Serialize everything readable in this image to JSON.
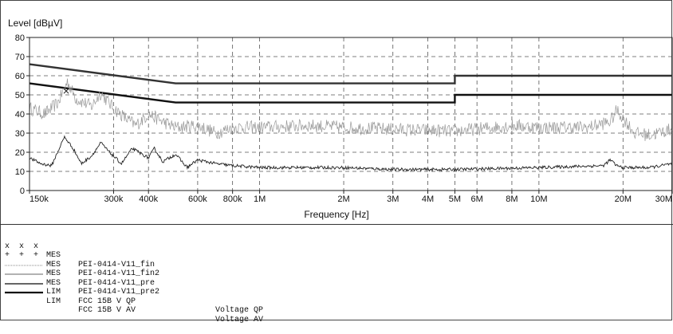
{
  "chart_data": {
    "type": "line",
    "ylabel": "Level [dBµV]",
    "xlabel": "Frequency [Hz]",
    "xscale": "log",
    "xlim": [
      150000,
      30000000
    ],
    "ylim": [
      0,
      80
    ],
    "yticks": [
      0,
      10,
      20,
      30,
      40,
      50,
      60,
      70,
      80
    ],
    "xticks": [
      {
        "value": 150000,
        "label": "150k"
      },
      {
        "value": 300000,
        "label": "300k"
      },
      {
        "value": 400000,
        "label": "400k"
      },
      {
        "value": 600000,
        "label": "600k"
      },
      {
        "value": 800000,
        "label": "800k"
      },
      {
        "value": 1000000,
        "label": "1M"
      },
      {
        "value": 2000000,
        "label": "2M"
      },
      {
        "value": 3000000,
        "label": "3M"
      },
      {
        "value": 4000000,
        "label": "4M"
      },
      {
        "value": 5000000,
        "label": "5M"
      },
      {
        "value": 6000000,
        "label": "6M"
      },
      {
        "value": 8000000,
        "label": "8M"
      },
      {
        "value": 10000000,
        "label": "10M"
      },
      {
        "value": 20000000,
        "label": "20M"
      },
      {
        "value": 30000000,
        "label": "30M"
      }
    ],
    "grid": true,
    "series": [
      {
        "name": "FCC 15B V QP",
        "kind": "limit",
        "color": "#333333",
        "x": [
          150000,
          500000,
          5000000,
          5000000,
          30000000
        ],
        "y": [
          66,
          56,
          56,
          60,
          60
        ]
      },
      {
        "name": "FCC 15B V AV",
        "kind": "limit",
        "color": "#111111",
        "x": [
          150000,
          500000,
          5000000,
          5000000,
          30000000
        ],
        "y": [
          56,
          46,
          46,
          50,
          50
        ]
      },
      {
        "name": "PEI-0414-V11_pre",
        "kind": "scan",
        "color": "#999999",
        "x": [
          150000,
          170000,
          190000,
          205000,
          220000,
          250000,
          270000,
          300000,
          330000,
          360000,
          400000,
          450000,
          500000,
          600000,
          700000,
          800000,
          1000000,
          1500000,
          2000000,
          3000000,
          5000000,
          8000000,
          10000000,
          15000000,
          18000000,
          19000000,
          20000000,
          22000000,
          25000000,
          30000000
        ],
        "y": [
          43,
          40,
          46,
          57,
          48,
          44,
          51,
          43,
          38,
          34,
          40,
          36,
          33,
          34,
          30,
          33,
          33,
          34,
          33,
          32,
          31,
          34,
          33,
          33,
          36,
          42,
          38,
          30,
          29,
          32
        ]
      },
      {
        "name": "PEI-0414-V11_pre2",
        "kind": "scan",
        "color": "#222222",
        "x": [
          150000,
          165000,
          180000,
          200000,
          215000,
          230000,
          250000,
          270000,
          290000,
          320000,
          350000,
          400000,
          420000,
          450000,
          500000,
          550000,
          600000,
          700000,
          800000,
          1000000,
          2000000,
          3000000,
          5000000,
          10000000,
          17000000,
          18000000,
          19000000,
          20000000,
          25000000,
          30000000
        ],
        "y": [
          17,
          14,
          13,
          28,
          22,
          14,
          18,
          25,
          20,
          14,
          22,
          17,
          22,
          15,
          19,
          12,
          16,
          14,
          13,
          12,
          12,
          11,
          11,
          12,
          13,
          16,
          13,
          12,
          12,
          14
        ]
      },
      {
        "name": "PEI-0414-V11_fin",
        "kind": "points",
        "marker": "x",
        "x": [
          203000
        ],
        "y": [
          52
        ]
      }
    ]
  },
  "legend": [
    {
      "symbol": "x  x  x",
      "type": "MES",
      "name": "PEI-0414-V11_fin",
      "desc": ""
    },
    {
      "symbol": "+  +  +",
      "type": "MES",
      "name": "PEI-0414-V11_fin2",
      "desc": ""
    },
    {
      "symbol": "dotted",
      "type": "MES",
      "name": "PEI-0414-V11_pre",
      "desc": ""
    },
    {
      "symbol": "thin",
      "type": "MES",
      "name": "PEI-0414-V11_pre2",
      "desc": ""
    },
    {
      "symbol": "gray-thick",
      "type": "LIM",
      "name": "FCC 15B V QP",
      "desc": "Voltage QP"
    },
    {
      "symbol": "black-thick",
      "type": "LIM",
      "name": "FCC 15B V AV",
      "desc": "Voltage AV"
    }
  ]
}
